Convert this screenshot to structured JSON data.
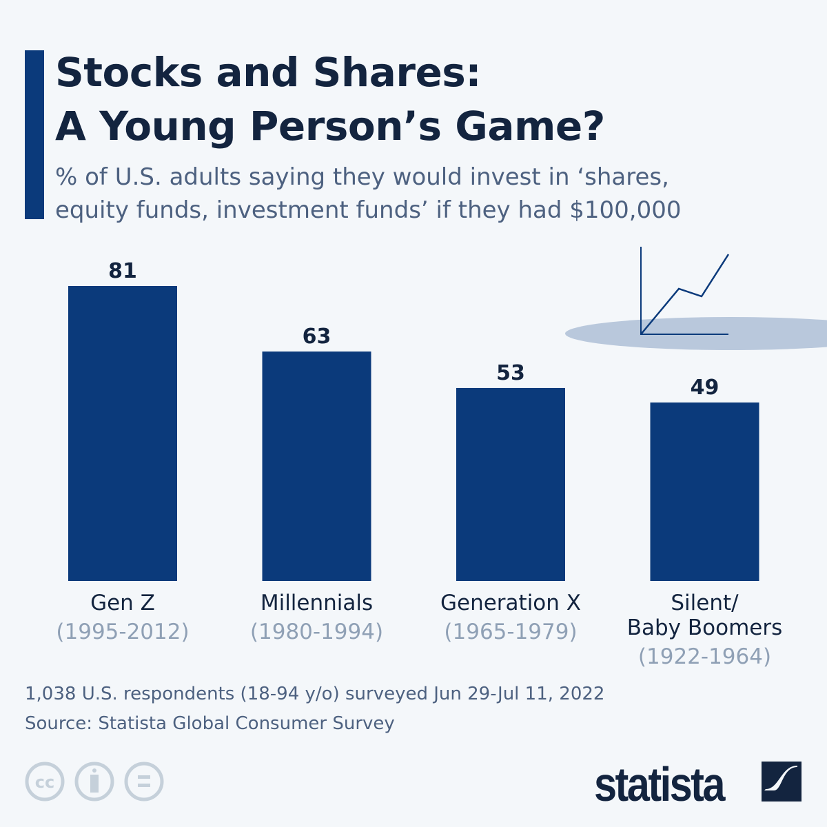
{
  "title_line1": "Stocks and Shares:",
  "title_line2": "A Young Person’s Game?",
  "subtitle_line1": "% of U.S. adults saying they would invest in ‘shares,",
  "subtitle_line2": "equity funds, investment funds’ if they had $100,000",
  "chart_data": {
    "type": "bar",
    "categories": [
      "Gen Z (1995-2012)",
      "Millennials (1980-1994)",
      "Generation X (1965-1979)",
      "Silent/ Baby Boomers (1922-1964)"
    ],
    "category_labels": [
      {
        "name": [
          "Gen Z"
        ],
        "years": "(1995-2012)"
      },
      {
        "name": [
          "Millennials"
        ],
        "years": "(1980-1994)"
      },
      {
        "name": [
          "Generation X"
        ],
        "years": "(1965-1979)"
      },
      {
        "name": [
          "Silent/",
          "Baby Boomers"
        ],
        "years": "(1922-1964)"
      }
    ],
    "values": [
      81,
      63,
      53,
      49
    ],
    "ylim": [
      0,
      81
    ],
    "grid": false,
    "bar_color": "#0b3a7b"
  },
  "footnote": "1,038 U.S. respondents (18-94 y/o) surveyed Jun 29-Jul 11, 2022",
  "source": "Source: Statista Global Consumer Survey",
  "logo": "statista",
  "icons": [
    "cc-icon",
    "attribution-icon",
    "no-derivatives-icon",
    "line-chart-illustration"
  ]
}
